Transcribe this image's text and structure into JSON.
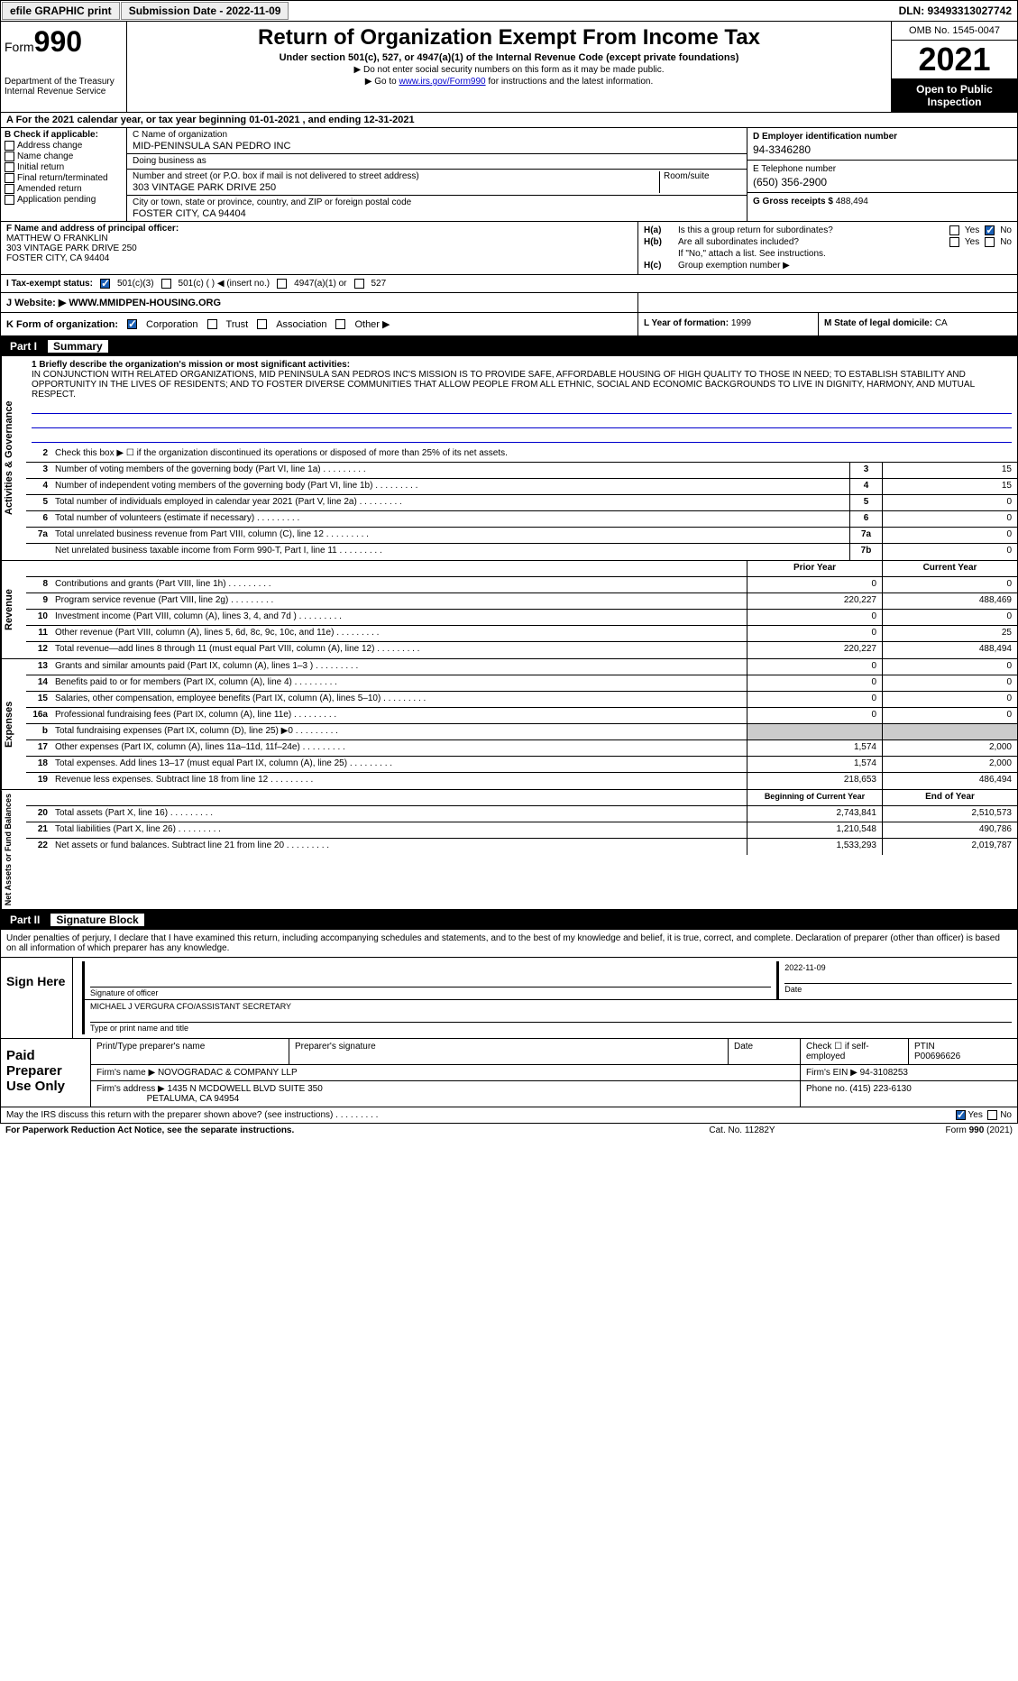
{
  "topbar": {
    "efile": "efile GRAPHIC print",
    "submission": "Submission Date - 2022-11-09",
    "dln": "DLN: 93493313027742"
  },
  "header": {
    "form_prefix": "Form",
    "form_num": "990",
    "dept": "Department of the Treasury",
    "irs": "Internal Revenue Service",
    "title": "Return of Organization Exempt From Income Tax",
    "sub": "Under section 501(c), 527, or 4947(a)(1) of the Internal Revenue Code (except private foundations)",
    "note1": "▶ Do not enter social security numbers on this form as it may be made public.",
    "note2_pre": "▶ Go to ",
    "note2_link": "www.irs.gov/Form990",
    "note2_post": " for instructions and the latest information.",
    "omb": "OMB No. 1545-0047",
    "year": "2021",
    "open_pub": "Open to Public Inspection"
  },
  "row_a": "A For the 2021 calendar year, or tax year beginning 01-01-2021    , and ending 12-31-2021",
  "col_b": {
    "title": "B Check if applicable:",
    "items": [
      "Address change",
      "Name change",
      "Initial return",
      "Final return/terminated",
      "Amended return",
      "Application pending"
    ]
  },
  "col_c": {
    "name_label": "C Name of organization",
    "name": "MID-PENINSULA SAN PEDRO INC",
    "dba_label": "Doing business as",
    "dba": "",
    "street_label": "Number and street (or P.O. box if mail is not delivered to street address)",
    "street": "303 VINTAGE PARK DRIVE 250",
    "room_label": "Room/suite",
    "city_label": "City or town, state or province, country, and ZIP or foreign postal code",
    "city": "FOSTER CITY, CA  94404"
  },
  "col_d": {
    "ein_label": "D Employer identification number",
    "ein": "94-3346280",
    "phone_label": "E Telephone number",
    "phone": "(650) 356-2900",
    "gross_label": "G Gross receipts $",
    "gross": "488,494"
  },
  "col_f": {
    "label": "F Name and address of principal officer:",
    "name": "MATTHEW O FRANKLIN",
    "addr1": "303 VINTAGE PARK DRIVE 250",
    "addr2": "FOSTER CITY, CA  94404"
  },
  "col_h": {
    "ha_label": "H(a)",
    "ha_txt": "Is this a group return for subordinates?",
    "hb_label": "H(b)",
    "hb_txt": "Are all subordinates included?",
    "hb_note": "If \"No,\" attach a list. See instructions.",
    "hc_label": "H(c)",
    "hc_txt": "Group exemption number ▶",
    "yes": "Yes",
    "no": "No"
  },
  "row_i": {
    "label": "I   Tax-exempt status:",
    "opt1": "501(c)(3)",
    "opt2": "501(c) (   ) ◀ (insert no.)",
    "opt3": "4947(a)(1) or",
    "opt4": "527"
  },
  "row_j": {
    "left_label": "J  Website: ▶",
    "left_val": "WWW.MMIDPEN-HOUSING.ORG"
  },
  "row_k": {
    "label": "K Form of organization:",
    "opts": [
      "Corporation",
      "Trust",
      "Association",
      "Other ▶"
    ],
    "l_label": "L Year of formation:",
    "l_val": "1999",
    "m_label": "M State of legal domicile:",
    "m_val": "CA"
  },
  "part1": {
    "num": "Part I",
    "title": "Summary",
    "mission_label": "1  Briefly describe the organization's mission or most significant activities:",
    "mission": "IN CONJUNCTION WITH RELATED ORGANIZATIONS, MID PENINSULA SAN PEDROS INC'S MISSION IS TO PROVIDE SAFE, AFFORDABLE HOUSING OF HIGH QUALITY TO THOSE IN NEED; TO ESTABLISH STABILITY AND OPPORTUNITY IN THE LIVES OF RESIDENTS; AND TO FOSTER DIVERSE COMMUNITIES THAT ALLOW PEOPLE FROM ALL ETHNIC, SOCIAL AND ECONOMIC BACKGROUNDS TO LIVE IN DIGNITY, HARMONY, AND MUTUAL RESPECT.",
    "line2": "Check this box ▶ ☐  if the organization discontinued its operations or disposed of more than 25% of its net assets.",
    "gov_lines": [
      {
        "n": "3",
        "d": "Number of voting members of the governing body (Part VI, line 1a)",
        "b": "3",
        "v": "15"
      },
      {
        "n": "4",
        "d": "Number of independent voting members of the governing body (Part VI, line 1b)",
        "b": "4",
        "v": "15"
      },
      {
        "n": "5",
        "d": "Total number of individuals employed in calendar year 2021 (Part V, line 2a)",
        "b": "5",
        "v": "0"
      },
      {
        "n": "6",
        "d": "Total number of volunteers (estimate if necessary)",
        "b": "6",
        "v": "0"
      },
      {
        "n": "7a",
        "d": "Total unrelated business revenue from Part VIII, column (C), line 12",
        "b": "7a",
        "v": "0"
      },
      {
        "n": "",
        "d": "Net unrelated business taxable income from Form 990-T, Part I, line 11",
        "b": "7b",
        "v": "0"
      }
    ],
    "prior_hdr": "Prior Year",
    "curr_hdr": "Current Year",
    "rev_lines": [
      {
        "n": "8",
        "d": "Contributions and grants (Part VIII, line 1h)",
        "p": "0",
        "c": "0"
      },
      {
        "n": "9",
        "d": "Program service revenue (Part VIII, line 2g)",
        "p": "220,227",
        "c": "488,469"
      },
      {
        "n": "10",
        "d": "Investment income (Part VIII, column (A), lines 3, 4, and 7d )",
        "p": "0",
        "c": "0"
      },
      {
        "n": "11",
        "d": "Other revenue (Part VIII, column (A), lines 5, 6d, 8c, 9c, 10c, and 11e)",
        "p": "0",
        "c": "25"
      },
      {
        "n": "12",
        "d": "Total revenue—add lines 8 through 11 (must equal Part VIII, column (A), line 12)",
        "p": "220,227",
        "c": "488,494"
      }
    ],
    "exp_lines": [
      {
        "n": "13",
        "d": "Grants and similar amounts paid (Part IX, column (A), lines 1–3 )",
        "p": "0",
        "c": "0"
      },
      {
        "n": "14",
        "d": "Benefits paid to or for members (Part IX, column (A), line 4)",
        "p": "0",
        "c": "0"
      },
      {
        "n": "15",
        "d": "Salaries, other compensation, employee benefits (Part IX, column (A), lines 5–10)",
        "p": "0",
        "c": "0"
      },
      {
        "n": "16a",
        "d": "Professional fundraising fees (Part IX, column (A), line 11e)",
        "p": "0",
        "c": "0"
      },
      {
        "n": "b",
        "d": "Total fundraising expenses (Part IX, column (D), line 25) ▶0",
        "p": "",
        "c": "",
        "shade": true
      },
      {
        "n": "17",
        "d": "Other expenses (Part IX, column (A), lines 11a–11d, 11f–24e)",
        "p": "1,574",
        "c": "2,000"
      },
      {
        "n": "18",
        "d": "Total expenses. Add lines 13–17 (must equal Part IX, column (A), line 25)",
        "p": "1,574",
        "c": "2,000"
      },
      {
        "n": "19",
        "d": "Revenue less expenses. Subtract line 18 from line 12",
        "p": "218,653",
        "c": "486,494"
      }
    ],
    "na_hdr1": "Beginning of Current Year",
    "na_hdr2": "End of Year",
    "na_lines": [
      {
        "n": "20",
        "d": "Total assets (Part X, line 16)",
        "p": "2,743,841",
        "c": "2,510,573"
      },
      {
        "n": "21",
        "d": "Total liabilities (Part X, line 26)",
        "p": "1,210,548",
        "c": "490,786"
      },
      {
        "n": "22",
        "d": "Net assets or fund balances. Subtract line 21 from line 20",
        "p": "1,533,293",
        "c": "2,019,787"
      }
    ],
    "vlabels": {
      "gov": "Activities & Governance",
      "rev": "Revenue",
      "exp": "Expenses",
      "na": "Net Assets or Fund Balances"
    }
  },
  "part2": {
    "num": "Part II",
    "title": "Signature Block",
    "intro": "Under penalties of perjury, I declare that I have examined this return, including accompanying schedules and statements, and to the best of my knowledge and belief, it is true, correct, and complete. Declaration of preparer (other than officer) is based on all information of which preparer has any knowledge.",
    "sign_here": "Sign Here",
    "sig_officer": "Signature of officer",
    "sig_date": "2022-11-09",
    "date_label": "Date",
    "officer_name": "MICHAEL J VERGURA  CFO/ASSISTANT SECRETARY",
    "type_name": "Type or print name and title",
    "paid": "Paid Preparer Use Only",
    "prep_name_label": "Print/Type preparer's name",
    "prep_sig_label": "Preparer's signature",
    "prep_date_label": "Date",
    "check_if": "Check ☐ if self-employed",
    "ptin_label": "PTIN",
    "ptin": "P00696626",
    "firm_name_label": "Firm's name    ▶",
    "firm_name": "NOVOGRADAC & COMPANY LLP",
    "firm_ein_label": "Firm's EIN ▶",
    "firm_ein": "94-3108253",
    "firm_addr_label": "Firm's address ▶",
    "firm_addr1": "1435 N MCDOWELL BLVD SUITE 350",
    "firm_addr2": "PETALUMA, CA  94954",
    "phone_label": "Phone no.",
    "phone": "(415) 223-6130",
    "discuss": "May the IRS discuss this return with the preparer shown above? (see instructions)",
    "yes": "Yes",
    "no": "No"
  },
  "footer": {
    "left": "For Paperwork Reduction Act Notice, see the separate instructions.",
    "mid": "Cat. No. 11282Y",
    "right": "Form 990 (2021)"
  }
}
